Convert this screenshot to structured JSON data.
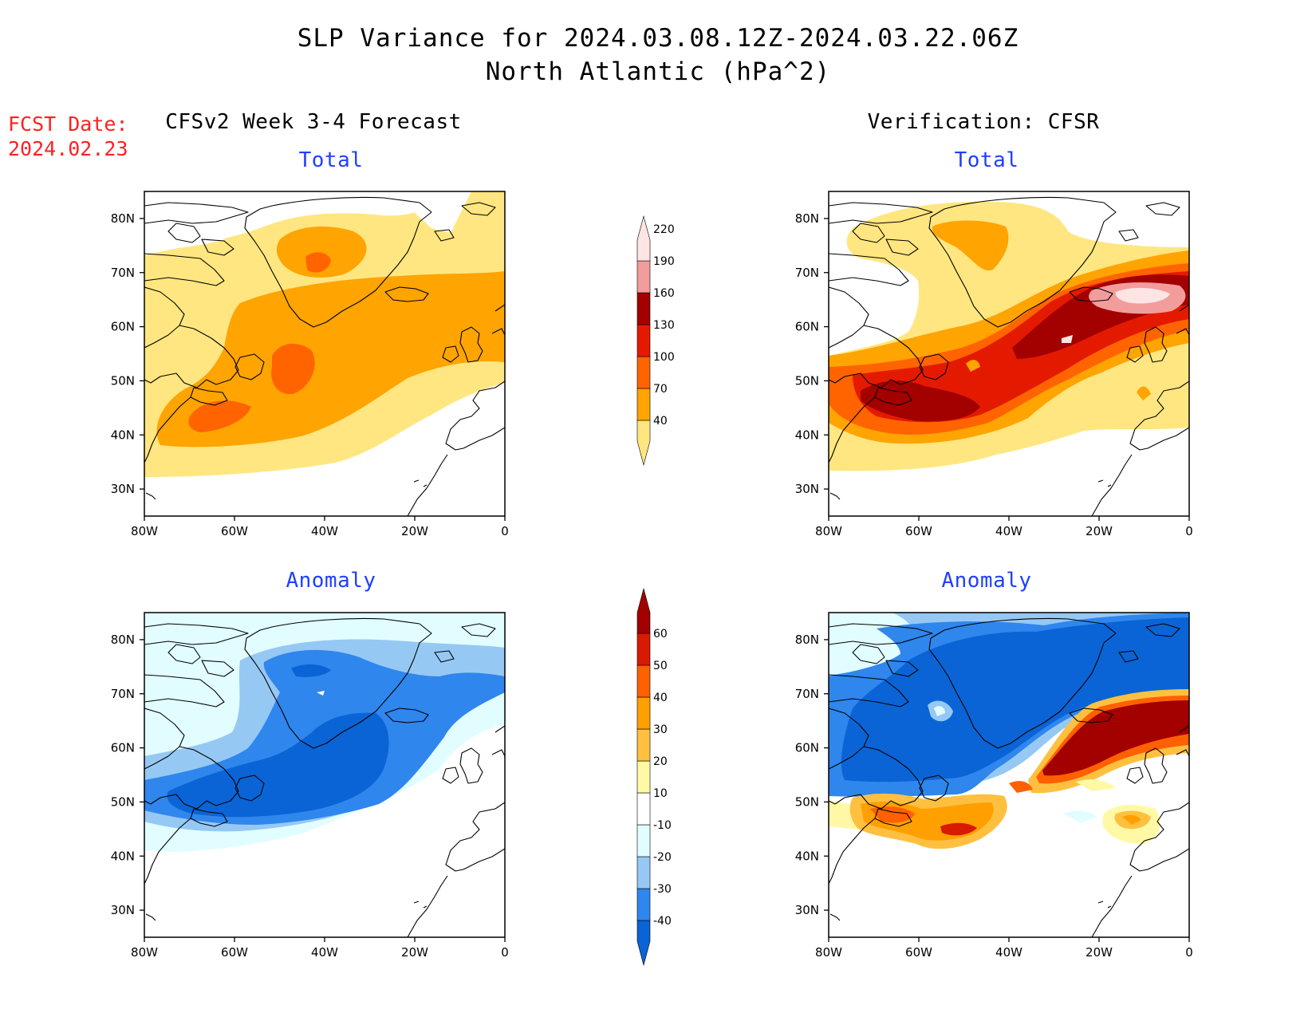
{
  "title": {
    "line1": "SLP Variance for 2024.03.08.12Z-2024.03.22.06Z",
    "line2": "North Atlantic (hPa^2)"
  },
  "fcst": {
    "label": "FCST Date:",
    "date": "2024.02.23"
  },
  "columns": {
    "left": "CFSv2 Week 3-4 Forecast",
    "right": "Verification: CFSR"
  },
  "panels": {
    "forecast_total": "Total",
    "verification_total": "Total",
    "forecast_anomaly": "Anomaly",
    "verification_anomaly": "Anomaly"
  },
  "axes": {
    "lon_ticks": [
      "80W",
      "60W",
      "40W",
      "20W",
      "0"
    ],
    "lat_ticks": [
      "80N",
      "70N",
      "60N",
      "50N",
      "40N",
      "30N"
    ],
    "lon_range": [
      -80,
      0
    ],
    "lat_range": [
      25,
      85
    ]
  },
  "colorbars": {
    "total": {
      "levels": [
        "40",
        "70",
        "100",
        "130",
        "160",
        "190",
        "220"
      ],
      "colors": [
        "#ffe680",
        "#ffa400",
        "#ff6400",
        "#e41a00",
        "#a30000",
        "#f29c9c",
        "#ffe4e4"
      ]
    },
    "anomaly": {
      "levels": [
        "-40",
        "-30",
        "-20",
        "-10",
        "10",
        "20",
        "30",
        "40",
        "50",
        "60"
      ],
      "colors": [
        "#0a64d6",
        "#2f86ec",
        "#96c8f4",
        "#e1fdff",
        "#ffffff",
        "#fff9a6",
        "#ffc040",
        "#ffa000",
        "#ff6000",
        "#d81a00",
        "#a30000"
      ]
    }
  },
  "colors": {
    "title_text": "#000000",
    "fcst_text": "#ff2020",
    "panel_title": "#1f3fff",
    "coast": "#000000"
  }
}
